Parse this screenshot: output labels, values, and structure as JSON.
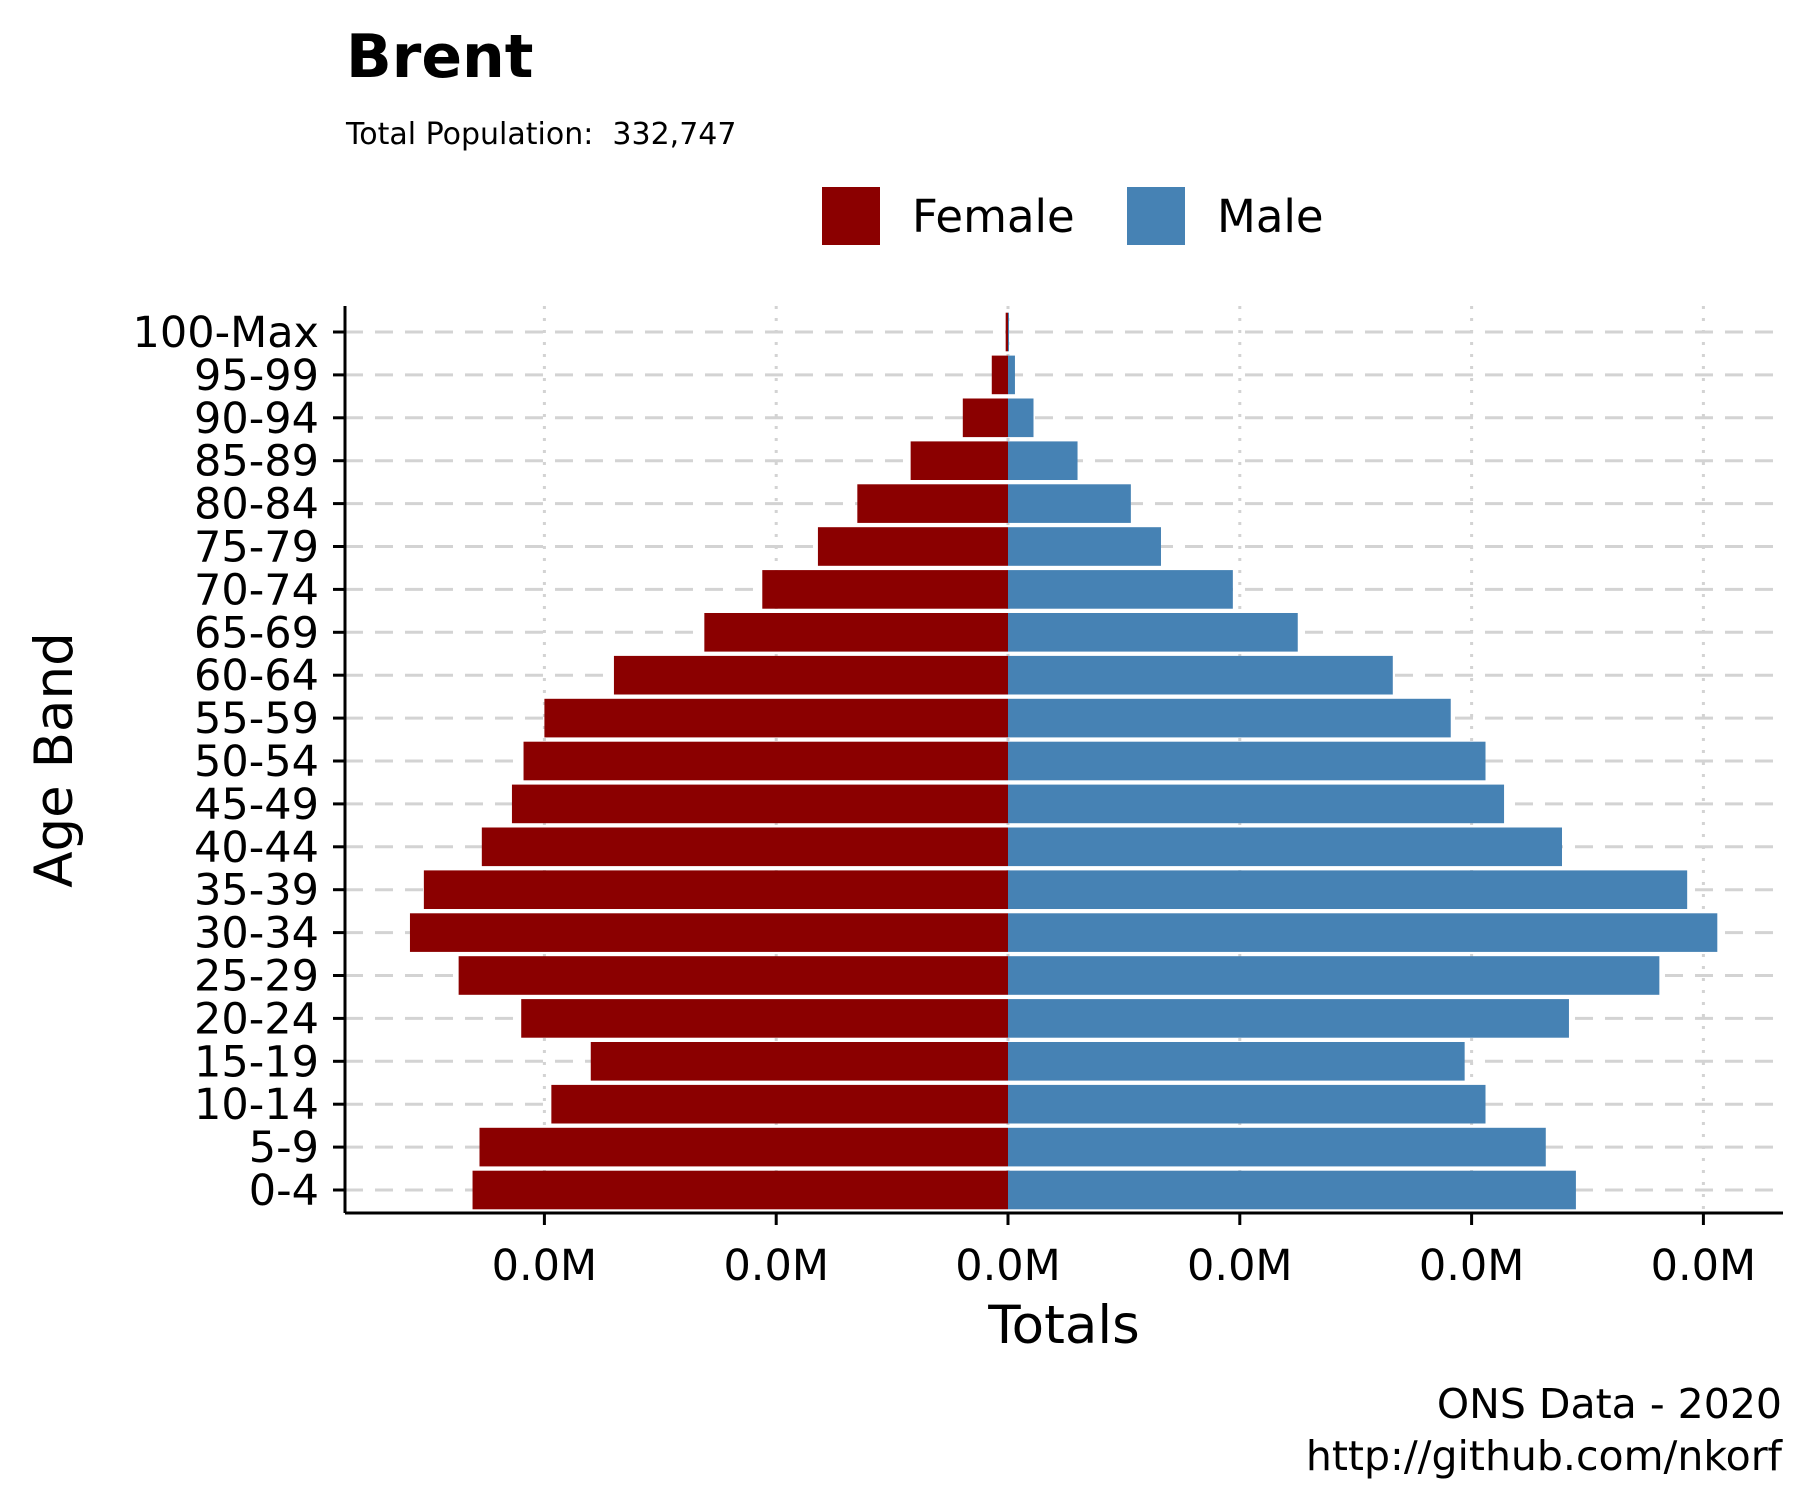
{
  "chart_data": {
    "type": "bar",
    "orientation": "horizontal",
    "title": "Brent",
    "subtitle": "Total Population:  332,747",
    "xlabel": "Totals",
    "ylabel": "Age Band",
    "caption_line1": "ONS Data - 2020",
    "caption_line2": "http://github.com/nkorf",
    "legend_position": "top",
    "grid": true,
    "xlim": [
      -3600,
      3350
    ],
    "xticks": [
      -2000,
      -1000,
      0,
      1000,
      2000,
      3000
    ],
    "xtick_labels": [
      "0.0M",
      "0.0M",
      "0.0M",
      "0.0M",
      "0.0M",
      "0.0M"
    ],
    "categories": [
      "0-4",
      "5-9",
      "10-14",
      "15-19",
      "20-24",
      "25-29",
      "30-34",
      "35-39",
      "40-44",
      "45-49",
      "50-54",
      "55-59",
      "60-64",
      "65-69",
      "70-74",
      "75-79",
      "80-84",
      "85-89",
      "90-94",
      "95-99",
      "100-Max"
    ],
    "series": [
      {
        "name": "Female",
        "color": "#8b0000",
        "values": [
          -2310,
          -2280,
          -1970,
          -1800,
          -2100,
          -2370,
          -2580,
          -2520,
          -2270,
          -2140,
          -2090,
          -2000,
          -1700,
          -1310,
          -1060,
          -820,
          -650,
          -420,
          -195,
          -70,
          -10
        ]
      },
      {
        "name": "Male",
        "color": "#4682b4",
        "values": [
          2450,
          2320,
          2060,
          1970,
          2420,
          2810,
          3060,
          2930,
          2390,
          2140,
          2060,
          1910,
          1660,
          1250,
          970,
          660,
          530,
          300,
          110,
          30,
          3
        ]
      }
    ]
  }
}
